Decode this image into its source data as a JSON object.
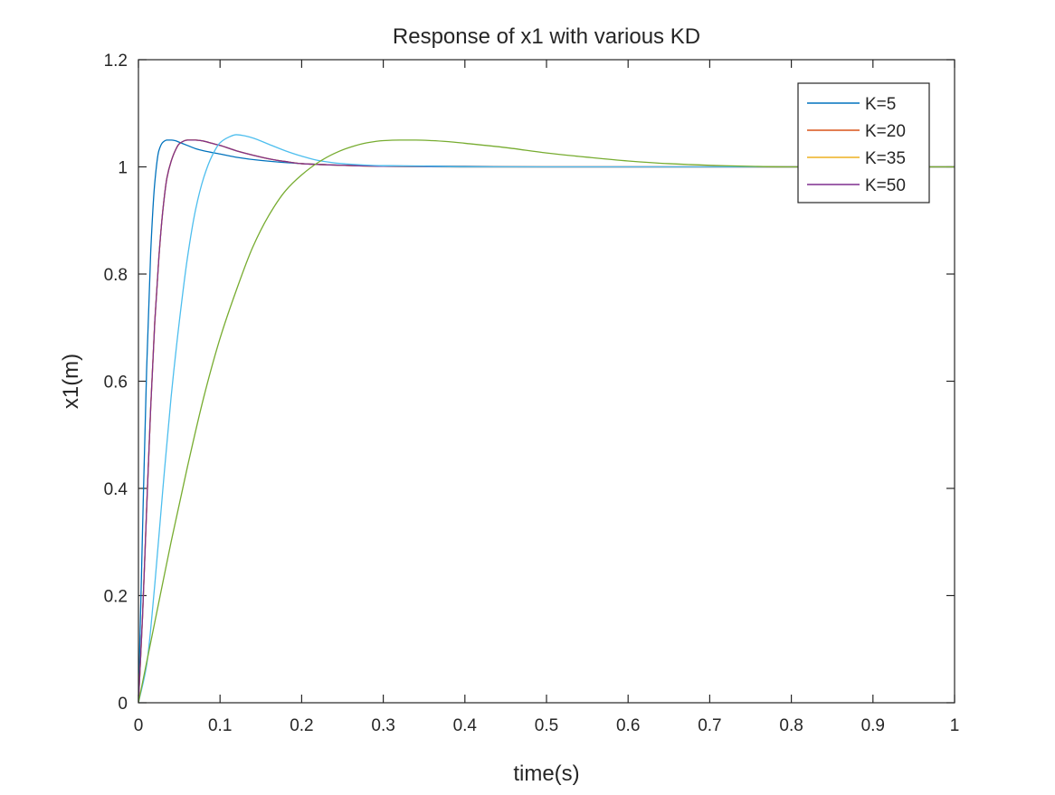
{
  "chart_data": {
    "type": "line",
    "title": "Response of x1 with various KD",
    "xlabel": "time(s)",
    "ylabel": "x1(m)",
    "xlim": [
      0,
      1
    ],
    "ylim": [
      0,
      1.2
    ],
    "xticks": [
      0,
      0.1,
      0.2,
      0.3,
      0.4,
      0.5,
      0.6,
      0.7,
      0.8,
      0.9,
      1
    ],
    "yticks": [
      0,
      0.2,
      0.4,
      0.6,
      0.8,
      1,
      1.2
    ],
    "xtick_labels": [
      "0",
      "0.1",
      "0.2",
      "0.3",
      "0.4",
      "0.5",
      "0.6",
      "0.7",
      "0.8",
      "0.9",
      "1"
    ],
    "ytick_labels": [
      "0",
      "0.2",
      "0.4",
      "0.6",
      "0.8",
      "1",
      "1.2"
    ],
    "grid": false,
    "legend_position": "top-right",
    "series": [
      {
        "name": "K=5",
        "color": "#0072BD",
        "x": [
          0,
          0.005,
          0.01,
          0.015,
          0.02,
          0.025,
          0.03,
          0.035,
          0.04,
          0.045,
          0.05,
          0.06,
          0.07,
          0.08,
          0.1,
          0.12,
          0.15,
          0.2,
          0.25,
          0.3,
          0.4,
          0.5,
          0.6,
          0.7,
          0.8,
          0.9,
          1.0
        ],
        "y": [
          0,
          0.32,
          0.62,
          0.84,
          0.97,
          1.03,
          1.046,
          1.05,
          1.05,
          1.049,
          1.046,
          1.04,
          1.034,
          1.03,
          1.024,
          1.018,
          1.012,
          1.006,
          1.003,
          1.002,
          1.001,
          1.0,
          1.0,
          1.0,
          1.0,
          1.0,
          1.0
        ]
      },
      {
        "name": "K=20",
        "color": "#D95319",
        "x": [
          0,
          0.005,
          0.01,
          0.015,
          0.02,
          0.025,
          0.03,
          0.035,
          0.04,
          0.045,
          0.05,
          0.06,
          0.07,
          0.08,
          0.09,
          0.1,
          0.12,
          0.14,
          0.16,
          0.18,
          0.2,
          0.25,
          0.3,
          0.4,
          0.5,
          0.6,
          0.8,
          1.0
        ],
        "y": [
          0,
          0.16,
          0.36,
          0.55,
          0.71,
          0.83,
          0.92,
          0.98,
          1.01,
          1.03,
          1.043,
          1.05,
          1.05,
          1.048,
          1.044,
          1.04,
          1.03,
          1.022,
          1.015,
          1.01,
          1.006,
          1.003,
          1.001,
          1.0,
          1.0,
          1.0,
          1.0,
          1.0
        ]
      },
      {
        "name": "K=35",
        "color": "#EDB120",
        "x": [
          0,
          0.005,
          0.01,
          0.015,
          0.02,
          0.025,
          0.03,
          0.035,
          0.04,
          0.045,
          0.05,
          0.06,
          0.07,
          0.08,
          0.09,
          0.1,
          0.12,
          0.14,
          0.16,
          0.18,
          0.2,
          0.25,
          0.3,
          0.4,
          0.5,
          0.6,
          0.8,
          1.0
        ],
        "y": [
          0,
          0.16,
          0.36,
          0.55,
          0.71,
          0.83,
          0.92,
          0.98,
          1.01,
          1.03,
          1.043,
          1.05,
          1.05,
          1.048,
          1.044,
          1.04,
          1.03,
          1.022,
          1.015,
          1.01,
          1.006,
          1.003,
          1.001,
          1.0,
          1.0,
          1.0,
          1.0,
          1.0
        ]
      },
      {
        "name": "K=50",
        "color": "#7E2F8E",
        "x": [
          0,
          0.005,
          0.01,
          0.015,
          0.02,
          0.025,
          0.03,
          0.035,
          0.04,
          0.045,
          0.05,
          0.06,
          0.07,
          0.08,
          0.09,
          0.1,
          0.12,
          0.14,
          0.16,
          0.18,
          0.2,
          0.25,
          0.3,
          0.4,
          0.5,
          0.6,
          0.8,
          1.0
        ],
        "y": [
          0,
          0.16,
          0.36,
          0.55,
          0.71,
          0.83,
          0.92,
          0.98,
          1.01,
          1.03,
          1.043,
          1.05,
          1.05,
          1.048,
          1.044,
          1.04,
          1.03,
          1.022,
          1.015,
          1.01,
          1.006,
          1.003,
          1.001,
          1.0,
          1.0,
          1.0,
          1.0,
          1.0
        ]
      },
      {
        "name": "",
        "color": "#4DBEEE",
        "x": [
          0,
          0.01,
          0.02,
          0.03,
          0.04,
          0.05,
          0.06,
          0.07,
          0.08,
          0.09,
          0.1,
          0.11,
          0.12,
          0.13,
          0.14,
          0.16,
          0.18,
          0.2,
          0.22,
          0.25,
          0.3,
          0.35,
          0.4,
          0.5,
          0.6,
          0.8,
          1.0
        ],
        "y": [
          0,
          0.07,
          0.22,
          0.4,
          0.57,
          0.71,
          0.83,
          0.92,
          0.98,
          1.02,
          1.045,
          1.055,
          1.06,
          1.058,
          1.054,
          1.042,
          1.03,
          1.02,
          1.012,
          1.006,
          1.002,
          1.001,
          1.0,
          1.0,
          1.0,
          1.0,
          1.0
        ]
      },
      {
        "name": "",
        "color": "#77AC30",
        "x": [
          0,
          0.02,
          0.04,
          0.06,
          0.08,
          0.1,
          0.12,
          0.14,
          0.16,
          0.18,
          0.2,
          0.22,
          0.24,
          0.26,
          0.28,
          0.3,
          0.32,
          0.34,
          0.36,
          0.38,
          0.4,
          0.45,
          0.5,
          0.55,
          0.6,
          0.65,
          0.7,
          0.75,
          0.8,
          0.9,
          1.0
        ],
        "y": [
          0,
          0.15,
          0.3,
          0.44,
          0.57,
          0.68,
          0.77,
          0.85,
          0.91,
          0.955,
          0.985,
          1.008,
          1.025,
          1.037,
          1.045,
          1.049,
          1.05,
          1.05,
          1.049,
          1.047,
          1.044,
          1.036,
          1.026,
          1.018,
          1.011,
          1.006,
          1.003,
          1.001,
          1.0,
          1.0,
          1.0
        ]
      }
    ]
  }
}
